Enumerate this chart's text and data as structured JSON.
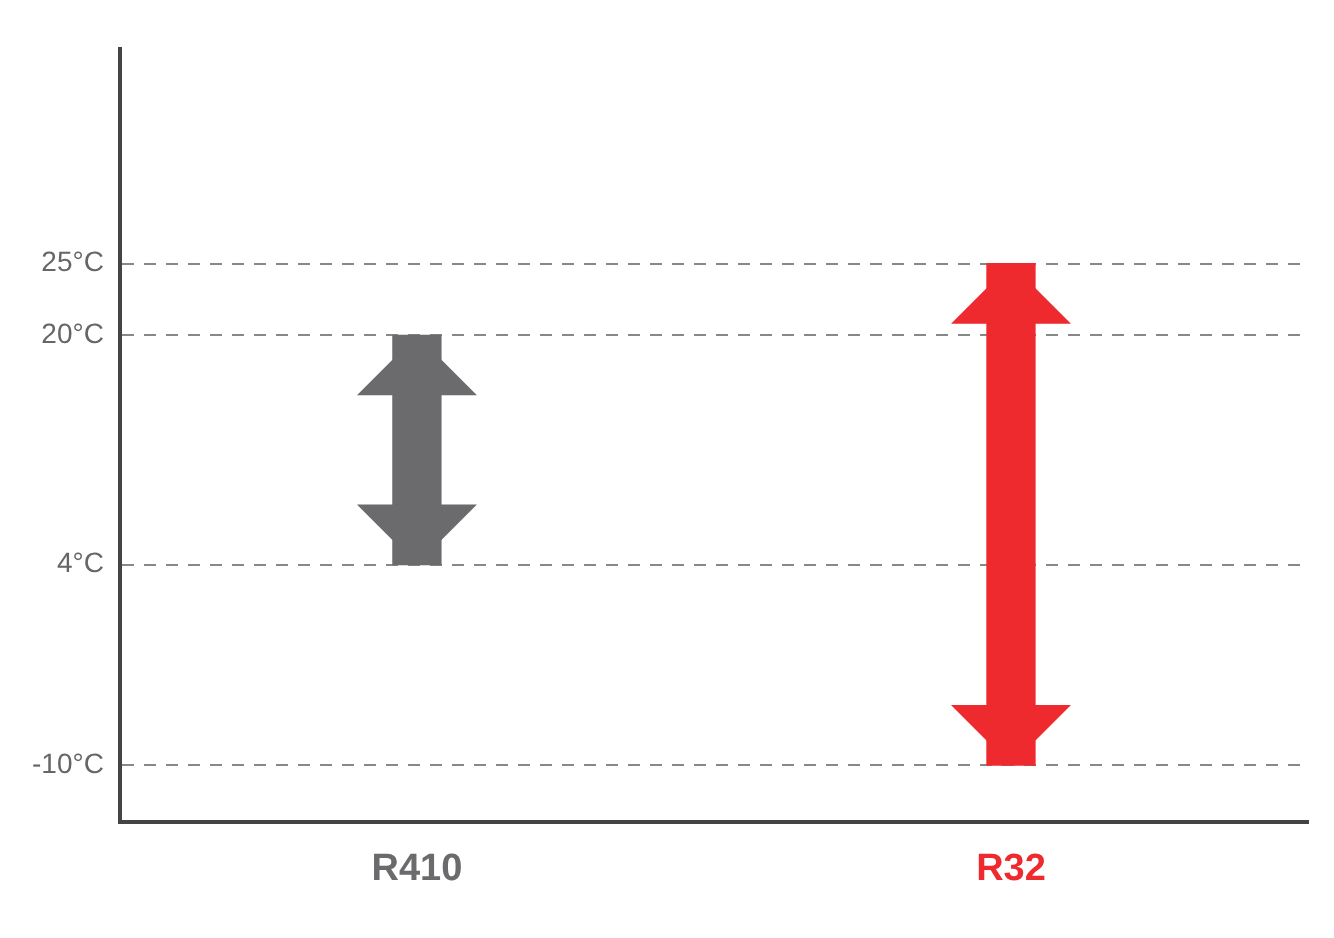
{
  "chart_data": {
    "type": "bar",
    "categories": [
      "R410",
      "R32"
    ],
    "values": [
      16,
      35
    ],
    "base": [
      4,
      -10
    ],
    "colors": [
      "#6b6a6d",
      "#ee2a2e"
    ],
    "ylim": [
      -14,
      40
    ],
    "yticks": [
      {
        "value": -10,
        "label": "-10°C"
      },
      {
        "value": 4,
        "label": "4°C"
      },
      {
        "value": 20,
        "label": "20°C"
      },
      {
        "value": 25,
        "label": "25°C"
      }
    ],
    "grid": "y"
  }
}
